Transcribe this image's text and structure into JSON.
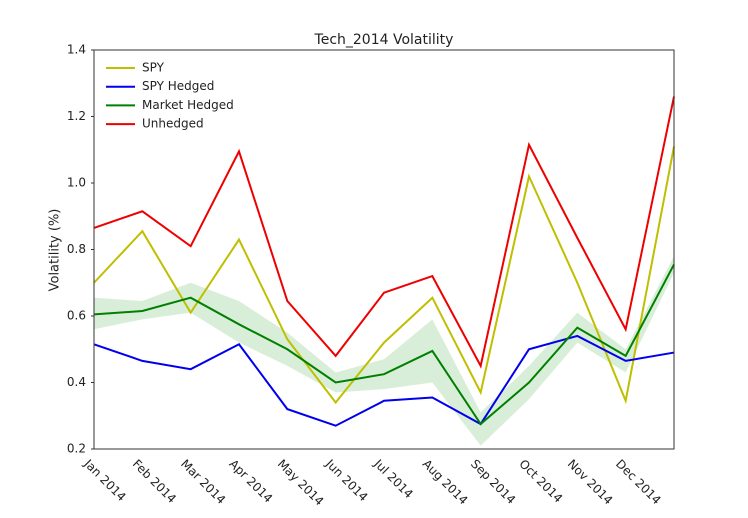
{
  "chart_data": {
    "type": "line",
    "title": "Tech_2014 Volatility",
    "y_label": "Volatility (%)",
    "categories": [
      "Jan 2014",
      "Feb 2014",
      "Mar 2014",
      "Apr 2014",
      "May 2014",
      "Jun 2014",
      "Jul 2014",
      "Aug 2014",
      "Sep 2014",
      "Oct 2014",
      "Nov 2014",
      "Dec 2014",
      null
    ],
    "series": [
      {
        "name": "SPY",
        "color": "#bfbf00",
        "values": [
          0.7,
          0.855,
          0.61,
          0.83,
          0.53,
          0.34,
          0.52,
          0.655,
          0.37,
          1.02,
          0.7,
          0.345,
          1.11
        ]
      },
      {
        "name": "SPY Hedged",
        "color": "#0000ee",
        "values": [
          0.515,
          0.465,
          0.44,
          0.515,
          0.32,
          0.27,
          0.345,
          0.355,
          0.275,
          0.5,
          0.54,
          0.465,
          0.49
        ]
      },
      {
        "name": "Market Hedged",
        "color": "#008000",
        "values": [
          0.605,
          0.615,
          0.655,
          0.575,
          0.5,
          0.4,
          0.425,
          0.495,
          0.275,
          0.4,
          0.565,
          0.48,
          0.755
        ],
        "band": {
          "color": "#d9eed9",
          "lower": [
            0.56,
            0.59,
            0.61,
            0.52,
            0.45,
            0.37,
            0.38,
            0.4,
            0.21,
            0.35,
            0.52,
            0.43,
            0.73
          ],
          "upper": [
            0.655,
            0.645,
            0.7,
            0.645,
            0.55,
            0.43,
            0.47,
            0.59,
            0.31,
            0.45,
            0.61,
            0.5,
            0.78
          ]
        }
      },
      {
        "name": "Unhedged",
        "color": "#ee0000",
        "values": [
          0.865,
          0.915,
          0.81,
          1.095,
          0.645,
          0.48,
          0.67,
          0.72,
          0.45,
          1.115,
          0.835,
          0.56,
          1.26
        ]
      }
    ],
    "ylim": [
      0.2,
      1.4
    ],
    "yticks": [
      0.2,
      0.4,
      0.6,
      0.8,
      {
        "value": 1,
        "label": "1.0"
      },
      1.2,
      1.4
    ],
    "grid": false,
    "legend": "upper left"
  }
}
